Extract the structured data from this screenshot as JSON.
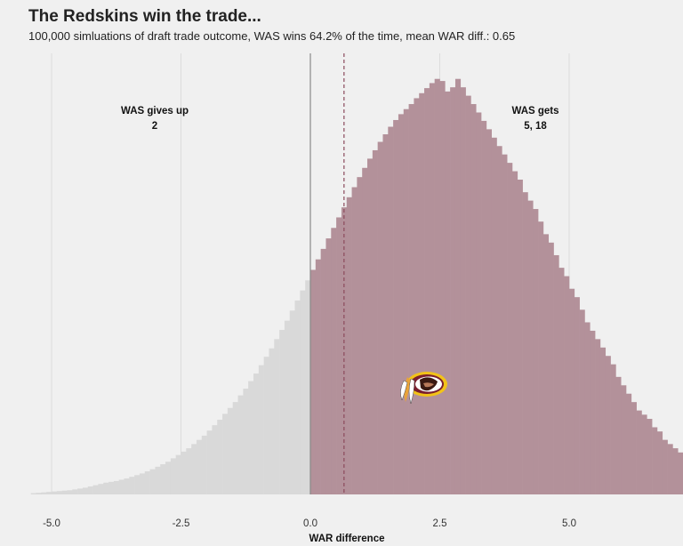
{
  "header": {
    "title": "The Redskins win the trade...",
    "subtitle": "100,000 simluations of draft trade outcome, WAS wins 64.2% of the time, mean WAR diff.: 0.65"
  },
  "annotations": {
    "gives_up_label": "WAS gives up",
    "gives_up_picks": "2",
    "gets_label": "WAS gets",
    "gets_picks": "5, 18"
  },
  "logo": {
    "icon": "redskins-logo-icon"
  },
  "colors": {
    "loss": "#d9d9d9",
    "win": "#b3919a",
    "mean_line": "#8c4a5c",
    "zero_line": "#888888"
  },
  "chart_data": {
    "type": "histogram",
    "xlabel": "WAR difference",
    "ylabel": "",
    "xlim": [
      -5.5,
      7.0
    ],
    "ylim": [
      0,
      1.0
    ],
    "xticks": [
      -5.0,
      -2.5,
      0.0,
      2.5,
      5.0
    ],
    "xtick_labels": [
      "-5.0",
      "-2.5",
      "0.0",
      "2.5",
      "5.0"
    ],
    "bin_width": 0.1,
    "bins_start": -5.4,
    "zero_line": 0.0,
    "mean_diff": 0.65,
    "counts_relative": [
      0.003,
      0.004,
      0.005,
      0.006,
      0.007,
      0.008,
      0.009,
      0.01,
      0.012,
      0.014,
      0.016,
      0.019,
      0.022,
      0.025,
      0.028,
      0.03,
      0.032,
      0.035,
      0.038,
      0.042,
      0.046,
      0.05,
      0.055,
      0.06,
      0.066,
      0.072,
      0.078,
      0.086,
      0.094,
      0.102,
      0.11,
      0.12,
      0.13,
      0.14,
      0.152,
      0.165,
      0.178,
      0.192,
      0.206,
      0.22,
      0.236,
      0.252,
      0.27,
      0.288,
      0.308,
      0.328,
      0.348,
      0.37,
      0.392,
      0.414,
      0.438,
      0.462,
      0.486,
      0.51,
      0.535,
      0.56,
      0.585,
      0.61,
      0.635,
      0.66,
      0.684,
      0.708,
      0.732,
      0.756,
      0.778,
      0.8,
      0.82,
      0.84,
      0.858,
      0.876,
      0.892,
      0.906,
      0.918,
      0.93,
      0.944,
      0.956,
      0.968,
      0.98,
      0.99,
      0.985,
      0.96,
      0.97,
      0.99,
      0.97,
      0.95,
      0.93,
      0.91,
      0.89,
      0.87,
      0.85,
      0.83,
      0.81,
      0.79,
      0.77,
      0.75,
      0.72,
      0.7,
      0.68,
      0.65,
      0.62,
      0.6,
      0.57,
      0.54,
      0.52,
      0.49,
      0.47,
      0.44,
      0.41,
      0.39,
      0.37,
      0.35,
      0.33,
      0.31,
      0.28,
      0.26,
      0.24,
      0.22,
      0.2,
      0.19,
      0.18,
      0.16,
      0.15,
      0.13,
      0.12,
      0.11,
      0.1,
      0.09,
      0.08,
      0.075,
      0.065,
      0.06,
      0.05,
      0.045,
      0.04,
      0.035,
      0.03,
      0.026,
      0.022,
      0.02,
      0.017,
      0.015,
      0.012,
      0.01,
      0.008,
      0.006,
      0.005,
      0.004,
      0.003,
      0.002,
      0.002
    ]
  }
}
